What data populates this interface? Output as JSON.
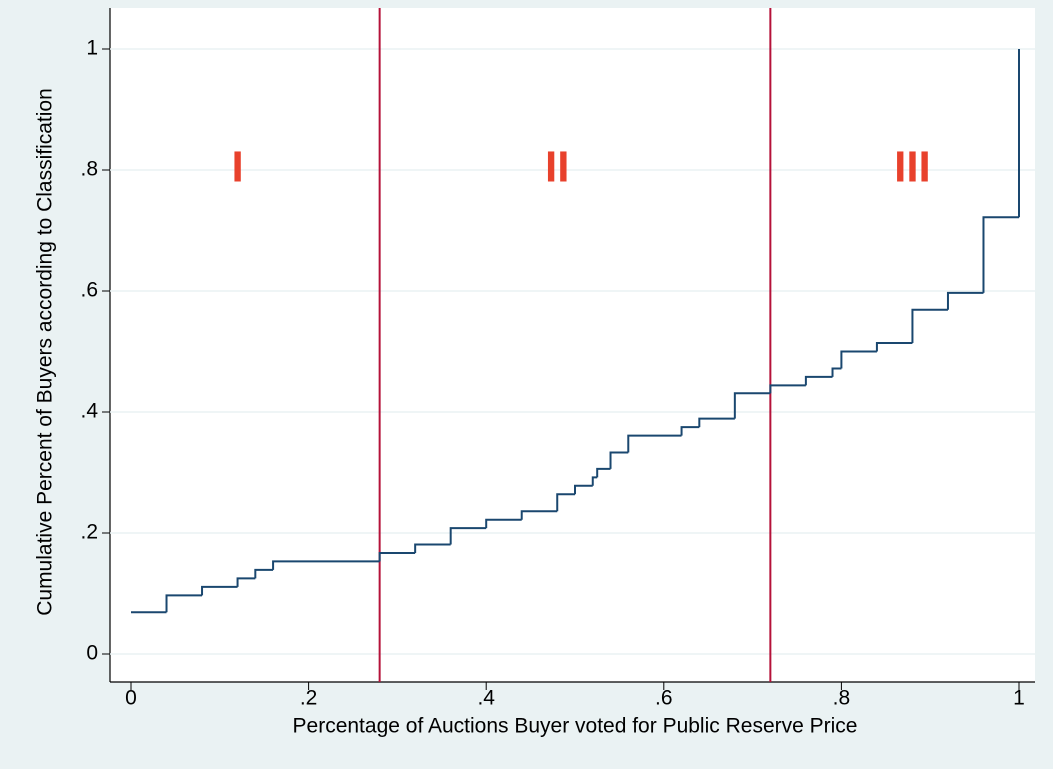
{
  "chart_data": {
    "type": "step",
    "x_label": "Percentage of Auctions Buyer voted for Public Reserve Price",
    "y_label": "Cumulative Percent of Buyers according to Classification",
    "x": [
      0,
      0.04,
      0.08,
      0.12,
      0.14,
      0.16,
      0.28,
      0.32,
      0.36,
      0.4,
      0.44,
      0.48,
      0.5,
      0.52,
      0.525,
      0.54,
      0.56,
      0.62,
      0.64,
      0.68,
      0.72,
      0.76,
      0.79,
      0.8,
      0.84,
      0.88,
      0.92,
      0.96,
      1.0
    ],
    "series": [
      {
        "color": "#1a476f",
        "values": [
          0.069,
          0.097,
          0.111,
          0.125,
          0.139,
          0.153,
          0.167,
          0.181,
          0.208,
          0.222,
          0.236,
          0.264,
          0.278,
          0.292,
          0.306,
          0.333,
          0.361,
          0.375,
          0.389,
          0.431,
          0.444,
          0.458,
          0.472,
          0.5,
          0.514,
          0.569,
          0.597,
          0.722,
          1.0
        ]
      }
    ],
    "xlim": [
      0,
      1
    ],
    "ylim": [
      0,
      1
    ],
    "xticks": [
      0,
      {
        "value": 0.2,
        "label": ".2"
      },
      {
        "value": 0.4,
        "label": ".4"
      },
      {
        "value": 0.6,
        "label": ".6"
      },
      {
        "value": 0.8,
        "label": ".8"
      },
      1
    ],
    "yticks": [
      0,
      {
        "value": 0.2,
        "label": ".2"
      },
      {
        "value": 0.4,
        "label": ".4"
      },
      {
        "value": 0.6,
        "label": ".6"
      },
      {
        "value": 0.8,
        "label": ".8"
      },
      1
    ],
    "grid": true,
    "vlines": {
      "color": "#b5123a",
      "values": [
        0.28,
        0.72
      ]
    },
    "annotations": [
      {
        "text": "I",
        "x": 0.12,
        "y": 0.8
      },
      {
        "text": "II",
        "x": 0.48,
        "y": 0.8
      },
      {
        "text": "III",
        "x": 0.88,
        "y": 0.8
      }
    ],
    "annotation_color": "#e8412c"
  }
}
